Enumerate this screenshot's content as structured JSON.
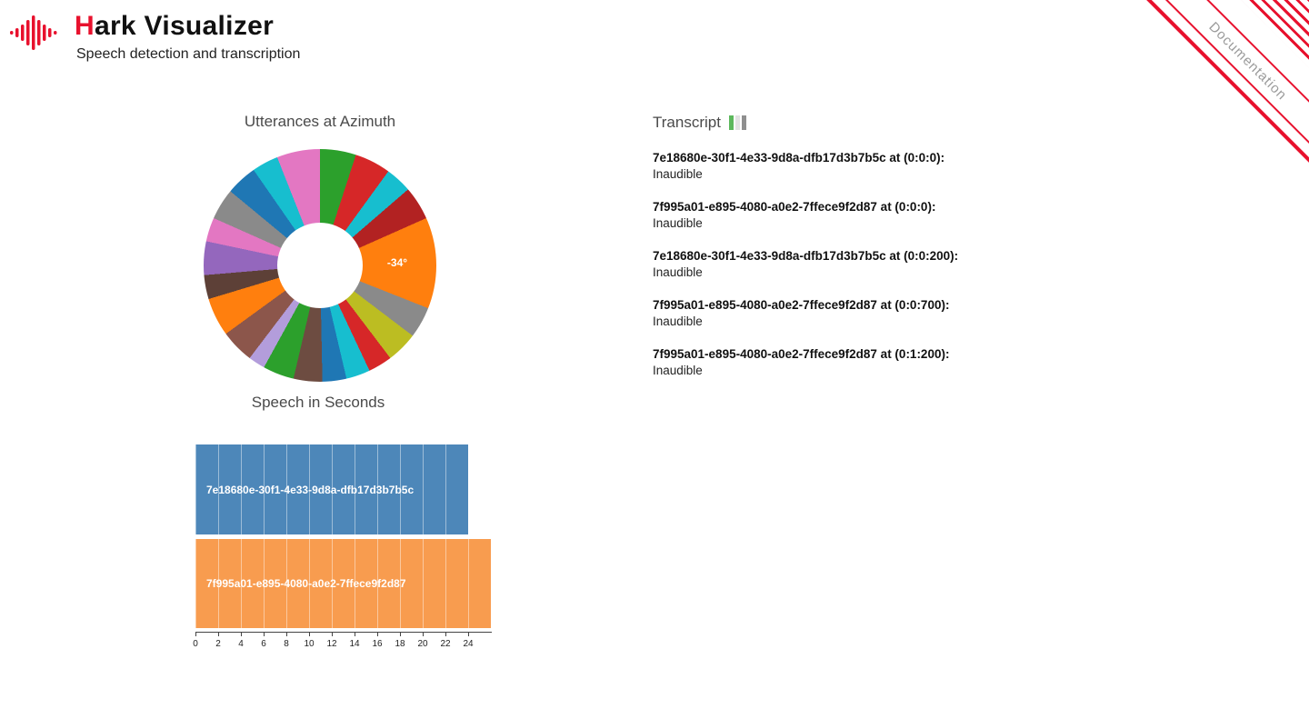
{
  "header": {
    "title_accent": "H",
    "title_rest": "ark Visualizer",
    "subtitle": "Speech detection and transcription",
    "accent_color": "#e8112d"
  },
  "ribbon": {
    "label": "Documentation",
    "stripe_color": "#e8112d",
    "text_color": "#9a9a9a"
  },
  "transcript": {
    "title": "Transcript",
    "heading_format": "{speaker} at ({time}):",
    "entries": [
      {
        "speaker": "7e18680e-30f1-4e33-9d8a-dfb17d3b7b5c",
        "time": "0:0:0",
        "text": "Inaudible"
      },
      {
        "speaker": "7f995a01-e895-4080-a0e2-7ffece9f2d87",
        "time": "0:0:0",
        "text": "Inaudible"
      },
      {
        "speaker": "7e18680e-30f1-4e33-9d8a-dfb17d3b7b5c",
        "time": "0:0:200",
        "text": "Inaudible"
      },
      {
        "speaker": "7f995a01-e895-4080-a0e2-7ffece9f2d87",
        "time": "0:0:700",
        "text": "Inaudible"
      },
      {
        "speaker": "7f995a01-e895-4080-a0e2-7ffece9f2d87",
        "time": "0:1:200",
        "text": "Inaudible"
      }
    ]
  },
  "chart_data": [
    {
      "type": "pie",
      "title": "Utterances at Azimuth",
      "donut_hole_ratio": 0.37,
      "center_label": "-34°",
      "center_label_color": "#ffffff",
      "segments": [
        {
          "color": "#2ca02c",
          "deg": 15
        },
        {
          "color": "#d62728",
          "deg": 15
        },
        {
          "color": "#17becf",
          "deg": 11
        },
        {
          "color": "#b22222",
          "deg": 14
        },
        {
          "color": "#ff7f0e",
          "deg": 38
        },
        {
          "color": "#8a8a8a",
          "deg": 13
        },
        {
          "color": "#bcbd22",
          "deg": 13
        },
        {
          "color": "#d62728",
          "deg": 10
        },
        {
          "color": "#17becf",
          "deg": 10
        },
        {
          "color": "#1f77b4",
          "deg": 10
        },
        {
          "color": "#6d4c41",
          "deg": 12
        },
        {
          "color": "#2ca02c",
          "deg": 13
        },
        {
          "color": "#b39ddb",
          "deg": 7
        },
        {
          "color": "#8c564b",
          "deg": 14
        },
        {
          "color": "#ff7f0e",
          "deg": 16
        },
        {
          "color": "#5d4037",
          "deg": 10
        },
        {
          "color": "#9467bd",
          "deg": 14
        },
        {
          "color": "#e377c2",
          "deg": 10
        },
        {
          "color": "#8a8a8a",
          "deg": 13
        },
        {
          "color": "#1f77b4",
          "deg": 13
        },
        {
          "color": "#17becf",
          "deg": 11
        },
        {
          "color": "#e377c2",
          "deg": 18
        }
      ]
    },
    {
      "type": "bar",
      "title": "Speech in Seconds",
      "orientation": "horizontal",
      "categories": [
        "7e18680e-30f1-4e33-9d8a-dfb17d3b7b5c",
        "7f995a01-e895-4080-a0e2-7ffece9f2d87"
      ],
      "values": [
        24,
        26
      ],
      "colors": [
        "#4d87b9",
        "#f89c4f"
      ],
      "xlabel": "",
      "ylabel": "",
      "units": "seconds",
      "xlim": [
        0,
        26
      ],
      "xticks": [
        0,
        2,
        4,
        6,
        8,
        10,
        12,
        14,
        16,
        18,
        20,
        22,
        24
      ],
      "grid": true
    }
  ]
}
